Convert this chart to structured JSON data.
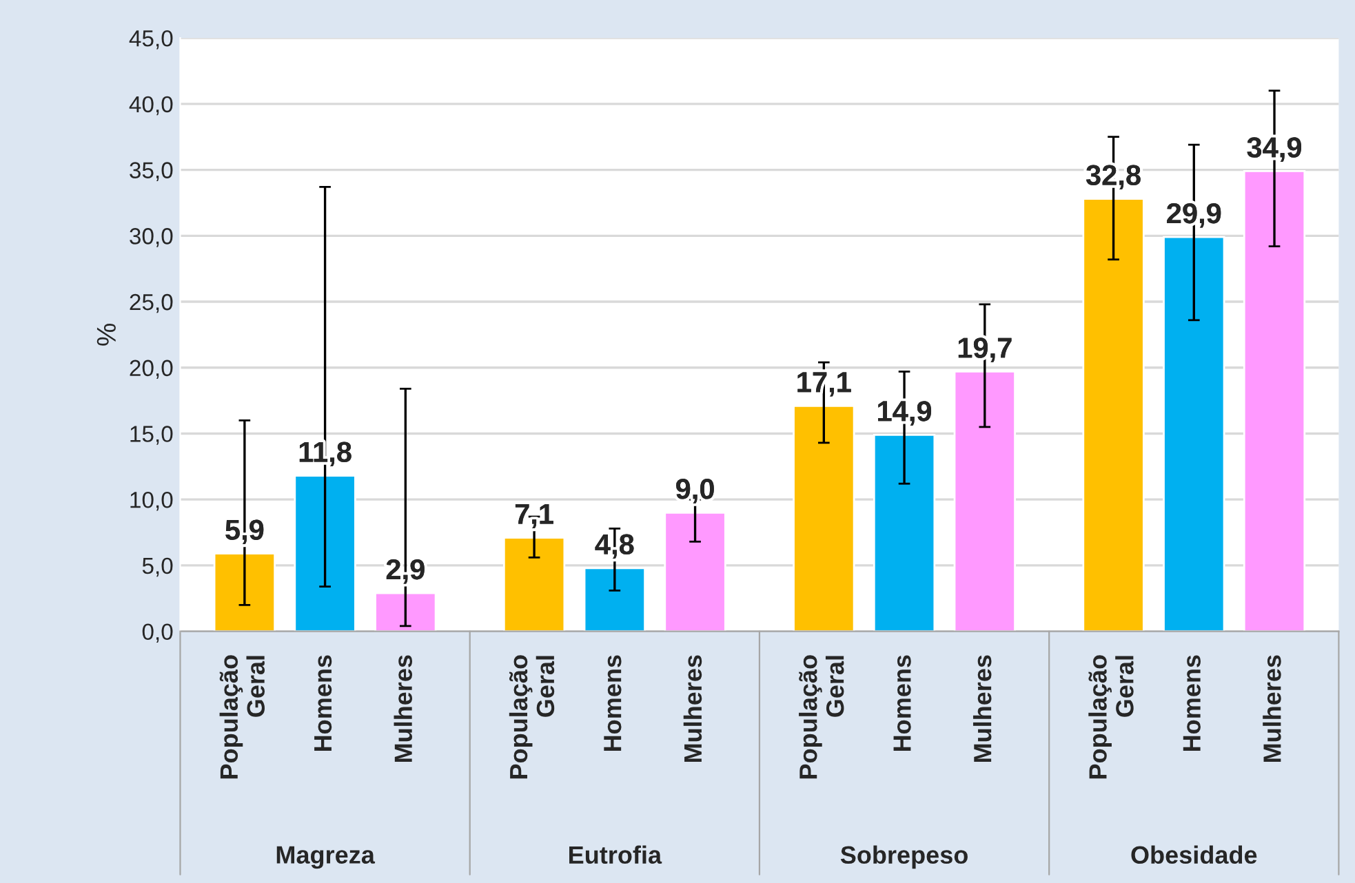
{
  "chart_data": {
    "type": "bar",
    "ylabel": "%",
    "categories": [
      "População\nGeral",
      "Homens",
      "Mulheres",
      "População\nGeral",
      "Homens",
      "Mulheres",
      "População\nGeral",
      "Homens",
      "Mulheres",
      "População\nGeral",
      "Homens",
      "Mulheres"
    ],
    "values": [
      5.9,
      11.8,
      2.9,
      7.1,
      4.8,
      9.0,
      17.1,
      14.9,
      19.7,
      32.8,
      29.9,
      34.9
    ],
    "value_labels": [
      "5,9",
      "11,8",
      "2,9",
      "7,1",
      "4,8",
      "9,0",
      "17,1",
      "14,9",
      "19,7",
      "32,8",
      "29,9",
      "34,9"
    ],
    "colors": [
      "#ffc000",
      "#00b0f0",
      "#ff99ff",
      "#ffc000",
      "#00b0f0",
      "#ff99ff",
      "#ffc000",
      "#00b0f0",
      "#ff99ff",
      "#ffc000",
      "#00b0f0",
      "#ff99ff"
    ],
    "errors": [
      [
        2.0,
        16.0
      ],
      [
        3.4,
        33.7
      ],
      [
        0.4,
        18.4
      ],
      [
        5.6,
        8.7
      ],
      [
        3.1,
        7.8
      ],
      [
        6.8,
        10.0
      ],
      [
        14.3,
        20.4
      ],
      [
        11.2,
        19.7
      ],
      [
        15.5,
        24.8
      ],
      [
        28.2,
        37.5
      ],
      [
        23.6,
        36.9
      ],
      [
        29.2,
        41.0
      ]
    ],
    "annotations": [
      "Magreza",
      "Eutrofia",
      "Sobrepeso",
      "Obesidade"
    ],
    "ylim": [
      0,
      45
    ],
    "yticks": [
      {
        "value": 0,
        "label": "0,0"
      },
      {
        "value": 5,
        "label": "5,0"
      },
      {
        "value": 10,
        "label": "10,0"
      },
      {
        "value": 15,
        "label": "15,0"
      },
      {
        "value": 20,
        "label": "20,0"
      },
      {
        "value": 25,
        "label": "25,0"
      },
      {
        "value": 30,
        "label": "30,0"
      },
      {
        "value": 35,
        "label": "35,0"
      },
      {
        "value": 40,
        "label": "40,0"
      },
      {
        "value": 45,
        "label": "45,0"
      }
    ],
    "grid": "y",
    "legend": false
  }
}
